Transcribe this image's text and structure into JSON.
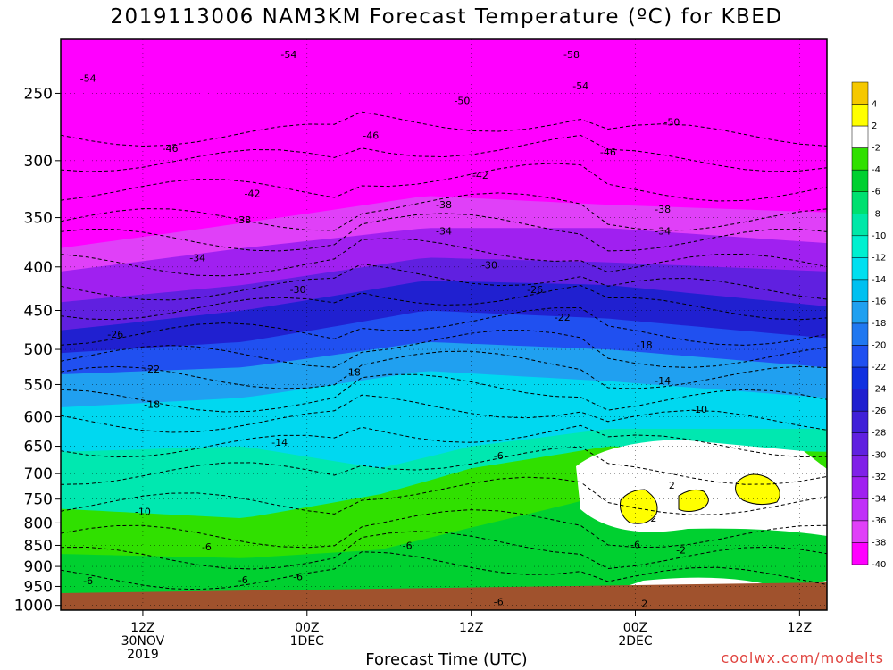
{
  "title": "2019113006 NAM3KM Forecast Temperature (ºC) for KBED",
  "chart_data": {
    "type": "heatmap",
    "title": "2019113006 NAM3KM Forecast Temperature (ºC) for KBED",
    "xlabel": "Forecast Time (UTC)",
    "ylabel": "",
    "y_axis": {
      "scale": "log-pressure",
      "reversed": true,
      "ticks": [
        250,
        300,
        350,
        400,
        450,
        500,
        550,
        600,
        650,
        700,
        750,
        800,
        850,
        900,
        950,
        1000
      ]
    },
    "x_axis": {
      "range_hours": [
        0,
        84
      ],
      "ticks": [
        {
          "hour": 9,
          "lines": [
            "12Z",
            "30NOV",
            "2019"
          ]
        },
        {
          "hour": 27,
          "lines": [
            "00Z",
            "1DEC"
          ]
        },
        {
          "hour": 45,
          "lines": [
            "12Z"
          ]
        },
        {
          "hour": 63,
          "lines": [
            "00Z",
            "2DEC"
          ]
        },
        {
          "hour": 81,
          "lines": [
            "12Z"
          ]
        }
      ]
    },
    "grid": true,
    "colorbar": {
      "placement": "right",
      "levels": [
        4,
        2,
        -2,
        -4,
        -6,
        -8,
        -10,
        -12,
        -14,
        -16,
        -18,
        -20,
        -22,
        -24,
        -26,
        -28,
        -30,
        -32,
        -34,
        -36,
        -38,
        -40
      ],
      "colors": [
        "#f5c800",
        "#ffff00",
        "#ffffff",
        "#30e000",
        "#00d030",
        "#00e070",
        "#00e8a8",
        "#00f0d0",
        "#00e0f0",
        "#00c0f0",
        "#20a0f0",
        "#2078f0",
        "#2050f0",
        "#1030e0",
        "#2020d0",
        "#4020d8",
        "#6020e0",
        "#8020e8",
        "#a020f0",
        "#c030f8",
        "#e040f8",
        "#ff00ff"
      ]
    },
    "contour_labels": [
      {
        "value": "-54",
        "hour": 3,
        "p": 240
      },
      {
        "value": "-54",
        "hour": 25,
        "p": 225
      },
      {
        "value": "-58",
        "hour": 56,
        "p": 225
      },
      {
        "value": "-54",
        "hour": 57,
        "p": 245
      },
      {
        "value": "-50",
        "hour": 44,
        "p": 255
      },
      {
        "value": "-50",
        "hour": 67,
        "p": 270
      },
      {
        "value": "-46",
        "hour": 12,
        "p": 290
      },
      {
        "value": "-46",
        "hour": 34,
        "p": 280
      },
      {
        "value": "-46",
        "hour": 60,
        "p": 293
      },
      {
        "value": "-42",
        "hour": 21,
        "p": 328
      },
      {
        "value": "-42",
        "hour": 46,
        "p": 312
      },
      {
        "value": "-38",
        "hour": 20,
        "p": 352
      },
      {
        "value": "-38",
        "hour": 42,
        "p": 338
      },
      {
        "value": "-38",
        "hour": 66,
        "p": 342
      },
      {
        "value": "-34",
        "hour": 15,
        "p": 390
      },
      {
        "value": "-34",
        "hour": 42,
        "p": 363
      },
      {
        "value": "-34",
        "hour": 66,
        "p": 363
      },
      {
        "value": "-30",
        "hour": 26,
        "p": 425
      },
      {
        "value": "-30",
        "hour": 47,
        "p": 398
      },
      {
        "value": "-26",
        "hour": 6,
        "p": 480
      },
      {
        "value": "-26",
        "hour": 52,
        "p": 425
      },
      {
        "value": "-22",
        "hour": 10,
        "p": 527
      },
      {
        "value": "-22",
        "hour": 55,
        "p": 458
      },
      {
        "value": "-18",
        "hour": 10,
        "p": 580
      },
      {
        "value": "-18",
        "hour": 32,
        "p": 532
      },
      {
        "value": "-18",
        "hour": 64,
        "p": 494
      },
      {
        "value": "-14",
        "hour": 24,
        "p": 643
      },
      {
        "value": "-14",
        "hour": 66,
        "p": 544
      },
      {
        "value": "-10",
        "hour": 9,
        "p": 775
      },
      {
        "value": "-10",
        "hour": 70,
        "p": 588
      },
      {
        "value": "-6",
        "hour": 3,
        "p": 935
      },
      {
        "value": "-6",
        "hour": 16,
        "p": 853
      },
      {
        "value": "-6",
        "hour": 20,
        "p": 933
      },
      {
        "value": "-6",
        "hour": 26,
        "p": 925
      },
      {
        "value": "-6",
        "hour": 38,
        "p": 850
      },
      {
        "value": "-6",
        "hour": 48,
        "p": 667
      },
      {
        "value": "-6",
        "hour": 48,
        "p": 990
      },
      {
        "value": "-6",
        "hour": 63,
        "p": 848
      },
      {
        "value": "-2",
        "hour": 68,
        "p": 860
      },
      {
        "value": "2",
        "hour": 67,
        "p": 722
      },
      {
        "value": "2",
        "hour": 64,
        "p": 995
      },
      {
        "value": "2",
        "hour": 65,
        "p": 790
      }
    ]
  },
  "credit": "coolwx.com/modelts"
}
